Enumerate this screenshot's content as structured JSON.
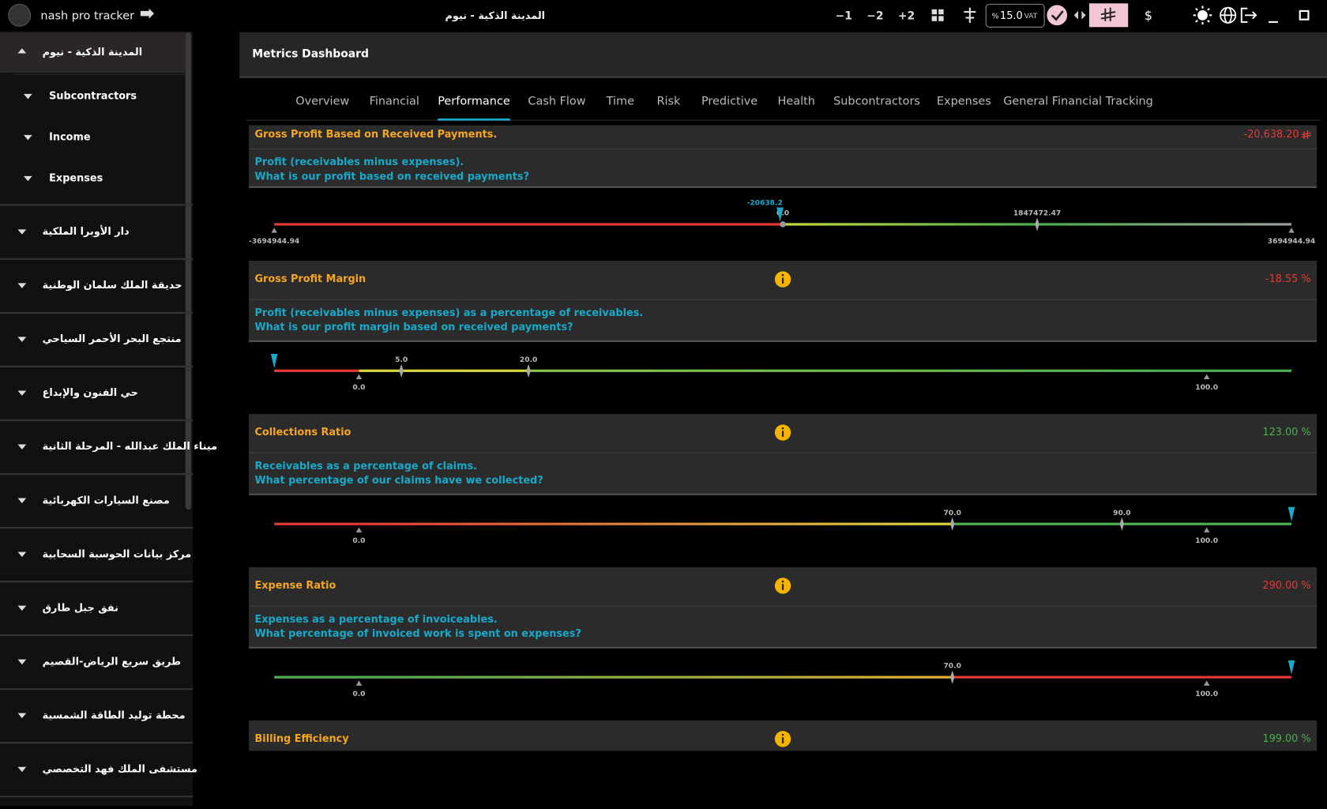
{
  "app": {
    "title": "nash pro tracker",
    "project": "المدينة الذكية - نيوم",
    "toolbar": [
      "−1",
      "−2",
      "+2"
    ],
    "vat": {
      "prefix": "%",
      "value": "15.0",
      "suffix": "VAT"
    },
    "currency": "$"
  },
  "sidebar": {
    "active": {
      "label": "المدينة الذكية - نيوم",
      "children": [
        "Subcontractors",
        "Income",
        "Expenses"
      ]
    },
    "projects": [
      "دار الأوبرا الملكية",
      "حديقة الملك سلمان الوطنية",
      "منتجع البحر الأحمر السياحي",
      "حي الفنون والإبداع",
      "ميناء الملك عبدالله - المرحلة الثانية",
      "مصنع السيارات الكهربائية",
      "مركز بيانات الحوسبة السحابية",
      "نفق جبل طارق",
      "طريق سريع الرياض-القصيم",
      "محطة توليد الطاقة الشمسية",
      "مستشفى الملك فهد التخصصي"
    ]
  },
  "dashboard": {
    "title": "Metrics Dashboard",
    "tabs": [
      {
        "label": "Overview"
      },
      {
        "label": "Financial"
      },
      {
        "label": "Performance",
        "active": true
      },
      {
        "label": "Cash Flow"
      },
      {
        "label": "Time"
      },
      {
        "label": "Risk"
      },
      {
        "label": "Predictive"
      },
      {
        "label": "Health"
      },
      {
        "label": "Subcontractors"
      },
      {
        "label": "Expenses"
      },
      {
        "label": "General Financial Tracking"
      }
    ],
    "metrics": [
      {
        "title": "Gross Profit Based on Received Payments.",
        "value": {
          "value": -20638.2,
          "label": "-20,638.20"
        },
        "currency": true,
        "color": "#e53935",
        "info": false,
        "description": [
          "Profit (receivables minus expenses).",
          "What is our profit based on received payments?"
        ],
        "gauge": {
          "range": [
            -3694944.94,
            3694944.94
          ],
          "ticks": [
            {
              "value": -3694944.94,
              "label": "-3694944.94",
              "shape": "triangle"
            },
            {
              "value": 0,
              "label": "0.0",
              "shape": "dot"
            },
            {
              "value": 1847472.47,
              "label": "1847472.47",
              "shape": "diamond"
            },
            {
              "value": 3694944.94,
              "label": "3694944.94",
              "shape": "triangle"
            }
          ],
          "segments": [
            [
              "#e53935",
              "#e53935"
            ],
            [
              "#c6d93a",
              "#4caf50"
            ],
            [
              "#4caf50",
              "#9e9e9e"
            ]
          ],
          "pointer": {
            "value": -20638.2,
            "label": "-20638.2"
          }
        }
      },
      {
        "title": "Gross Profit Margin",
        "value": {
          "value": -18.55,
          "label": "-18.55 %"
        },
        "color": "#e53935",
        "info": true,
        "description": [
          "Profit (receivables minus expenses) as a percentage of receivables.",
          "What is our profit margin based on received payments?"
        ],
        "gauge": {
          "range": [
            -10,
            110
          ],
          "ticks": [
            {
              "value": 0,
              "label": "0.0",
              "shape": "triangle"
            },
            {
              "value": 5,
              "label": "5.0",
              "shape": "diamond"
            },
            {
              "value": 20,
              "label": "20.0",
              "shape": "diamond"
            },
            {
              "value": 100,
              "label": "100.0",
              "shape": "triangle"
            }
          ],
          "segments": [
            [
              "#e53935",
              "#e53935"
            ],
            [
              "#d8d83c",
              "#d8d83c"
            ],
            [
              "#d8d83c",
              "#d4d83c"
            ],
            [
              "#8bc34a",
              "#4caf50"
            ],
            [
              "#4caf50",
              "#4caf50"
            ]
          ]
        }
      },
      {
        "title": "Collections Ratio",
        "value": {
          "value": 123,
          "label": "123.00 %"
        },
        "color": "#4caf50",
        "info": true,
        "description": [
          "Receivables as a percentage of claims.",
          "What percentage of our claims have we collected?"
        ],
        "gauge": {
          "range": [
            -10,
            110
          ],
          "ticks": [
            {
              "value": 0,
              "label": "0.0",
              "shape": "triangle"
            },
            {
              "value": 70,
              "label": "70.0",
              "shape": "diamond"
            },
            {
              "value": 90,
              "label": "90.0",
              "shape": "diamond"
            },
            {
              "value": 100,
              "label": "100.0",
              "shape": "triangle"
            }
          ],
          "segments": [
            [
              "#e53935",
              "#e53935"
            ],
            [
              "#e53935",
              "#d8d83c"
            ],
            [
              "#4caf50",
              "#4caf50"
            ],
            [
              "#4caf50",
              "#4caf50"
            ],
            [
              "#4caf50",
              "#4caf50"
            ]
          ]
        }
      },
      {
        "title": "Expense Ratio",
        "value": {
          "value": 290,
          "label": "290.00 %"
        },
        "color": "#e53935",
        "info": true,
        "description": [
          "Expenses as a percentage of invoiceables.",
          "What percentage of invoiced work is spent on expenses?"
        ],
        "gauge": {
          "range": [
            -10,
            110
          ],
          "ticks": [
            {
              "value": 0,
              "label": "0.0",
              "shape": "triangle"
            },
            {
              "value": 70,
              "label": "70.0",
              "shape": "diamond"
            },
            {
              "value": 100,
              "label": "100.0",
              "shape": "triangle"
            }
          ],
          "segments": [
            [
              "#4caf50",
              "#4caf50"
            ],
            [
              "#4caf50",
              "#e8b030"
            ],
            [
              "#e53935",
              "#e53935"
            ],
            [
              "#e53935",
              "#e53935"
            ]
          ]
        }
      },
      {
        "title": "Billing Efficiency",
        "value": {
          "value": 199,
          "label": "199.00 %"
        },
        "color": "#4caf50",
        "info": true
      }
    ]
  }
}
